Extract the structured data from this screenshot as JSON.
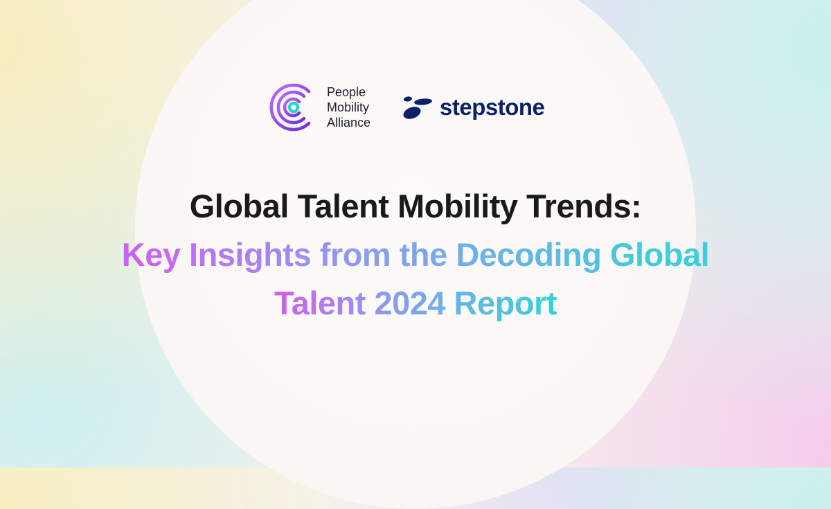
{
  "logos": {
    "pma": {
      "lines": [
        "People",
        "Mobility",
        "Alliance"
      ],
      "colors": [
        "#9b4cf0",
        "#2ed3c6"
      ]
    },
    "stepstone": {
      "name": "stepstone",
      "color": "#0b1f6b"
    }
  },
  "headline": {
    "line1": "Global Talent Mobility Trends:",
    "line2": "Key Insights from the Decoding Global",
    "line3": "Talent 2024 Report",
    "gradient": [
      "#d45cf0",
      "#33d2d8"
    ]
  }
}
